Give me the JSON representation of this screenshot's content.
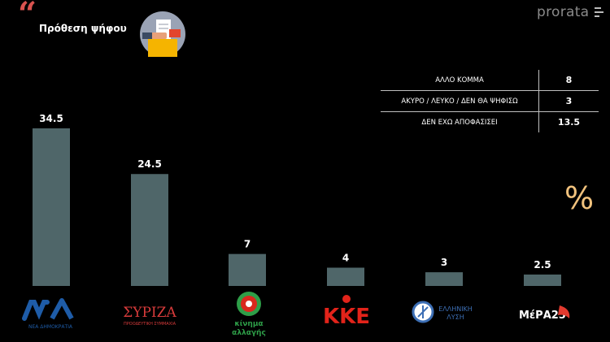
{
  "header": {
    "quote_mark": "“",
    "title": "Πρόθεση ψήφου",
    "brand": "prorata"
  },
  "table": {
    "rows": [
      {
        "label": "ΑΛΛΟ ΚΟΜΜΑ",
        "value": "8"
      },
      {
        "label": "ΑΚΥΡΟ / ΛΕΥΚΟ / ΔΕΝ ΘΑ ΨΗΦΙΣΩ",
        "value": "3"
      },
      {
        "label": "ΔΕΝ ΕΧΩ ΑΠΟΦΑΣΙΣΕΙ",
        "value": "13.5"
      }
    ]
  },
  "percent_symbol": "%",
  "colors": {
    "bar": "#4f6669",
    "accent": "#d9534f",
    "percent": "#f1c27d",
    "nd": "#1e5ca8",
    "syriza": "#d83b3b",
    "kinal": "#2e9e48",
    "kke": "#e2231a",
    "elliniki_lysi": "#3d6fb5",
    "mera25": "#e23a2f"
  },
  "logos": {
    "nd": {
      "text": "ΝΔ",
      "subtitle": "ΝΕΑ ΔΗΜΟΚΡΑΤΙΑ"
    },
    "syriza": {
      "text": "ΣΥΡΙΖΑ",
      "subtitle": "ΠΡΟΟΔΕΥΤΙΚΗ ΣΥΜΜΑΧΙΑ"
    },
    "kinal": {
      "text": "κίνημα αλλαγής",
      "line1": "κίνημα",
      "line2": "αλλαγής"
    },
    "kke": {
      "text": "ΚΚΕ"
    },
    "elliniki_lysi": {
      "text": "ΕΛΛΗΝΙΚΗ ΛΥΣΗ",
      "line1": "ΕΛΛΗΝΙΚΗ",
      "line2": "ΛΥΣΗ"
    },
    "mera25": {
      "text": "ΜέΡΑ25"
    }
  },
  "chart_data": {
    "type": "bar",
    "title": "Πρόθεση ψήφου",
    "categories": [
      "ΝΔ",
      "ΣΥΡΙΖΑ",
      "ΚΙΝΑΛ",
      "ΚΚΕ",
      "ΕΛΛΗΝΙΚΗ ΛΥΣΗ",
      "ΜέΡΑ25"
    ],
    "values": [
      34.5,
      24.5,
      7,
      4,
      3,
      2.5
    ],
    "value_labels": [
      "34.5",
      "24.5",
      "7",
      "4",
      "3",
      "2.5"
    ],
    "ylabel": "%",
    "ylim": [
      0,
      34.5
    ],
    "grid": false,
    "legend": "none"
  }
}
